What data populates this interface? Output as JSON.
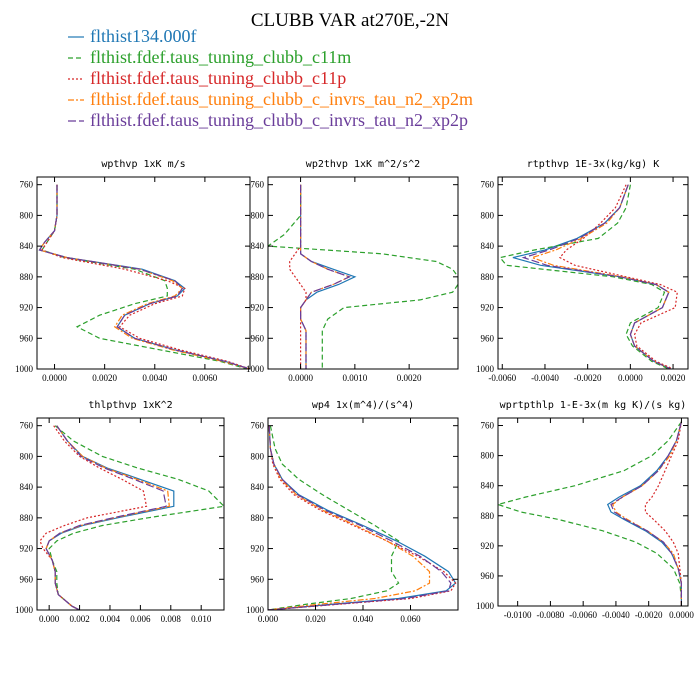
{
  "title": "CLUBB VAR at270E,-2N",
  "legend": [
    {
      "label": "flthist134.000f",
      "color": "#1f77b4",
      "dash": "solid"
    },
    {
      "label": "flthist.fdef.taus_tuning_clubb_c11m",
      "color": "#2ca02c",
      "dash": "dashed"
    },
    {
      "label": "flthist.fdef.taus_tuning_clubb_c11p",
      "color": "#d62728",
      "dash": "dotted"
    },
    {
      "label": "flthist.fdef.taus_tuning_clubb_c_invrs_tau_n2_xp2m",
      "color": "#ff7f0e",
      "dash": "dashdot"
    },
    {
      "label": "flthist.fdef.taus_tuning_clubb_c_invrs_tau_n2_xp2p",
      "color": "#6a3d9a",
      "dash": "longdash"
    }
  ],
  "chart_data": [
    {
      "type": "line",
      "title": "wpthvp  1xK m/s",
      "xlim": [
        -0.0007,
        0.0078
      ],
      "ylim": [
        750,
        1000
      ],
      "xticks": [
        0.0,
        0.002,
        0.004,
        0.006
      ],
      "xtick_labels": [
        "0.0000",
        "0.0020",
        "0.0040",
        "0.0060"
      ],
      "yticks": [
        760,
        800,
        840,
        880,
        920,
        960,
        1000
      ],
      "y": [
        760,
        780,
        800,
        820,
        835,
        845,
        855,
        870,
        885,
        895,
        905,
        915,
        930,
        945,
        960,
        975,
        990,
        1000
      ],
      "series": [
        {
          "values": [
            0.0001,
            0.0001,
            0.0001,
            0.0,
            -0.0004,
            -0.0006,
            0.0005,
            0.0035,
            0.0048,
            0.0052,
            0.0049,
            0.0038,
            0.0028,
            0.0025,
            0.0032,
            0.0048,
            0.0068,
            0.0078
          ]
        },
        {
          "values": [
            0.0001,
            0.0001,
            0.0001,
            0.0,
            -0.0003,
            -0.0005,
            0.0004,
            0.0032,
            0.0044,
            0.0045,
            0.0045,
            0.0032,
            0.0018,
            0.0009,
            0.0018,
            0.0042,
            0.0066,
            0.0077
          ]
        },
        {
          "values": [
            0.0001,
            0.0001,
            0.0001,
            0.0,
            -0.0003,
            -0.0005,
            0.0003,
            0.0028,
            0.0045,
            0.0052,
            0.0051,
            0.004,
            0.003,
            0.0026,
            0.0034,
            0.005,
            0.0069,
            0.0078
          ]
        },
        {
          "values": [
            0.0001,
            0.0001,
            0.0001,
            0.0,
            -0.0004,
            -0.0006,
            0.0005,
            0.0034,
            0.0047,
            0.0051,
            0.0048,
            0.0037,
            0.0027,
            0.0024,
            0.0031,
            0.0047,
            0.0067,
            0.0078
          ]
        },
        {
          "values": [
            0.0001,
            0.0001,
            0.0001,
            0.0,
            -0.0004,
            -0.0006,
            0.0005,
            0.0034,
            0.0048,
            0.0051,
            0.0049,
            0.0038,
            0.0028,
            0.0025,
            0.0032,
            0.0048,
            0.0068,
            0.0078
          ]
        }
      ]
    },
    {
      "type": "line",
      "title": "wp2thvp  1xK m^2/s^2",
      "xlim": [
        -0.0006,
        0.0029
      ],
      "ylim": [
        750,
        1000
      ],
      "xticks": [
        0.0,
        0.001,
        0.002
      ],
      "xtick_labels": [
        "0.0000",
        "0.0010",
        "0.0020"
      ],
      "yticks": [
        760,
        800,
        840,
        880,
        920,
        960,
        1000
      ],
      "y": [
        760,
        800,
        825,
        840,
        850,
        860,
        870,
        880,
        890,
        900,
        910,
        920,
        935,
        950,
        970,
        1000
      ],
      "series": [
        {
          "values": [
            0.0,
            0.0,
            0.0,
            0.0,
            0.0,
            0.0002,
            0.0006,
            0.001,
            0.0007,
            0.0003,
            0.0001,
            0.0,
            0.0,
            0.0001,
            0.0001,
            0.0001
          ]
        },
        {
          "values": [
            0.0,
            0.0,
            -0.0003,
            -0.0006,
            0.0015,
            0.0025,
            0.0028,
            0.0029,
            0.0029,
            0.0028,
            0.0022,
            0.0008,
            0.0005,
            0.0004,
            0.0004,
            0.0004
          ]
        },
        {
          "values": [
            0.0,
            0.0,
            0.0,
            0.0,
            -0.0001,
            -0.0002,
            -0.0002,
            -0.0001,
            0.0,
            0.0001,
            0.0001,
            0.0,
            0.0,
            0.0,
            0.0,
            0.0
          ]
        },
        {
          "values": [
            0.0,
            0.0,
            0.0,
            0.0,
            0.0,
            0.0002,
            0.0005,
            0.0009,
            0.0006,
            0.0002,
            0.0001,
            0.0,
            0.0,
            0.0001,
            0.0001,
            0.0001
          ]
        },
        {
          "values": [
            0.0,
            0.0,
            0.0,
            0.0,
            0.0,
            0.0002,
            0.0005,
            0.0009,
            0.0006,
            0.0002,
            0.0001,
            0.0,
            0.0,
            0.0001,
            0.0001,
            0.0001
          ]
        }
      ]
    },
    {
      "type": "line",
      "title": "rtpthvp  1E-3x(kg/kg) K",
      "xlim": [
        -0.0062,
        0.0027
      ],
      "ylim": [
        750,
        1000
      ],
      "xticks": [
        -0.006,
        -0.004,
        -0.002,
        0.0,
        0.002
      ],
      "xtick_labels": [
        "-0.0060",
        "-0.0040",
        "-0.0020",
        "0.0000",
        "0.0020"
      ],
      "yticks": [
        760,
        800,
        840,
        880,
        920,
        960,
        1000
      ],
      "y": [
        760,
        790,
        810,
        830,
        845,
        855,
        865,
        880,
        890,
        900,
        920,
        940,
        955,
        970,
        990,
        1000
      ],
      "series": [
        {
          "values": [
            -0.0001,
            -0.0005,
            -0.0012,
            -0.0025,
            -0.004,
            -0.0055,
            -0.0042,
            -0.0005,
            0.0012,
            0.0018,
            0.0015,
            0.0002,
            0.0,
            0.0002,
            0.0011,
            0.0019
          ]
        },
        {
          "values": [
            0.0,
            -0.0002,
            -0.0006,
            -0.0015,
            -0.0045,
            -0.0061,
            -0.0058,
            -0.0008,
            0.001,
            0.0016,
            0.0013,
            0.0,
            -0.0002,
            0.0001,
            0.001,
            0.0018
          ]
        },
        {
          "values": [
            -0.0002,
            -0.0007,
            -0.0014,
            -0.0022,
            -0.003,
            -0.0033,
            -0.0026,
            -0.0002,
            0.0014,
            0.0022,
            0.0021,
            0.0005,
            0.0002,
            0.0003,
            0.0012,
            0.002
          ]
        },
        {
          "values": [
            -0.0001,
            -0.0005,
            -0.0011,
            -0.0023,
            -0.0035,
            -0.0046,
            -0.0036,
            -0.0004,
            0.0012,
            0.0018,
            0.0015,
            0.0002,
            0.0,
            0.0002,
            0.0011,
            0.0019
          ]
        },
        {
          "values": [
            -0.0001,
            -0.0005,
            -0.0012,
            -0.0024,
            -0.0038,
            -0.005,
            -0.0039,
            -0.0005,
            0.0012,
            0.0018,
            0.0015,
            0.0002,
            0.0,
            0.0002,
            0.0011,
            0.0019
          ]
        }
      ]
    },
    {
      "type": "line",
      "title": "thlpthvp  1xK^2",
      "xlim": [
        -0.0008,
        0.0115
      ],
      "ylim": [
        750,
        1000
      ],
      "xticks": [
        0.0,
        0.002,
        0.004,
        0.006,
        0.008,
        0.01
      ],
      "xtick_labels": [
        "0.000",
        "0.002",
        "0.004",
        "0.006",
        "0.008",
        "0.010"
      ],
      "yticks": [
        760,
        800,
        840,
        880,
        920,
        960,
        1000
      ],
      "y": [
        760,
        780,
        800,
        815,
        830,
        845,
        865,
        880,
        890,
        900,
        910,
        920,
        935,
        950,
        965,
        980,
        995,
        1000
      ],
      "series": [
        {
          "values": [
            0.0005,
            0.0012,
            0.0022,
            0.0038,
            0.006,
            0.0082,
            0.0082,
            0.0045,
            0.0022,
            0.0008,
            0.0,
            -0.0002,
            0.0002,
            0.0004,
            0.0004,
            0.0006,
            0.0015,
            0.002
          ]
        },
        {
          "values": [
            0.0004,
            0.0016,
            0.0035,
            0.0058,
            0.0085,
            0.0105,
            0.0115,
            0.0065,
            0.0035,
            0.0016,
            0.0005,
            0.0,
            0.0002,
            0.0005,
            0.0005,
            0.0006,
            0.0015,
            0.002
          ]
        },
        {
          "values": [
            0.0003,
            0.001,
            0.002,
            0.0033,
            0.0048,
            0.0062,
            0.0064,
            0.0025,
            0.001,
            -0.0002,
            -0.0006,
            -0.0004,
            0.0002,
            0.0004,
            0.0004,
            0.0006,
            0.0015,
            0.002
          ]
        },
        {
          "values": [
            0.0005,
            0.0012,
            0.0022,
            0.0037,
            0.0058,
            0.0078,
            0.0079,
            0.0043,
            0.0021,
            0.0007,
            0.0,
            -0.0002,
            0.0002,
            0.0004,
            0.0004,
            0.0006,
            0.0015,
            0.002
          ]
        },
        {
          "values": [
            0.0005,
            0.0012,
            0.0021,
            0.0036,
            0.0056,
            0.0075,
            0.0077,
            0.0042,
            0.002,
            0.0007,
            0.0,
            -0.0002,
            0.0002,
            0.0004,
            0.0004,
            0.0006,
            0.0015,
            0.002
          ]
        }
      ]
    },
    {
      "type": "line",
      "title": "wp4  1x(m^4)/(s^4)",
      "xlim": [
        0.0,
        0.08
      ],
      "ylim": [
        750,
        1000
      ],
      "xticks": [
        0.0,
        0.02,
        0.04,
        0.06
      ],
      "xtick_labels": [
        "0.000",
        "0.020",
        "0.040",
        "0.060"
      ],
      "yticks": [
        760,
        800,
        840,
        880,
        920,
        960,
        1000
      ],
      "y": [
        760,
        790,
        810,
        830,
        850,
        870,
        890,
        910,
        930,
        950,
        965,
        975,
        985,
        993,
        1000
      ],
      "series": [
        {
          "values": [
            0.0005,
            0.001,
            0.0025,
            0.006,
            0.013,
            0.025,
            0.04,
            0.054,
            0.066,
            0.076,
            0.079,
            0.075,
            0.055,
            0.025,
            0.0
          ]
        },
        {
          "values": [
            0.001,
            0.003,
            0.006,
            0.013,
            0.023,
            0.034,
            0.045,
            0.055,
            0.052,
            0.052,
            0.055,
            0.05,
            0.035,
            0.015,
            0.0
          ]
        },
        {
          "values": [
            0.0005,
            0.001,
            0.002,
            0.005,
            0.011,
            0.022,
            0.036,
            0.05,
            0.063,
            0.074,
            0.079,
            0.077,
            0.06,
            0.028,
            0.0
          ]
        },
        {
          "values": [
            0.0005,
            0.001,
            0.0025,
            0.0055,
            0.012,
            0.023,
            0.037,
            0.05,
            0.061,
            0.068,
            0.068,
            0.062,
            0.045,
            0.02,
            0.0
          ]
        },
        {
          "values": [
            0.0005,
            0.001,
            0.0025,
            0.006,
            0.0125,
            0.024,
            0.039,
            0.052,
            0.064,
            0.073,
            0.077,
            0.076,
            0.058,
            0.027,
            0.0
          ]
        }
      ]
    },
    {
      "type": "line",
      "title": "wprtpthlp  1-E-3x(m kg K)/(s kg)",
      "xlim": [
        -0.0112,
        0.0004
      ],
      "ylim": [
        750,
        1000
      ],
      "xticks": [
        -0.01,
        -0.008,
        -0.006,
        -0.004,
        -0.002,
        0.0
      ],
      "xtick_labels": [
        "-0.0100",
        "-0.0080",
        "-0.0060",
        "-0.0040",
        "-0.0020",
        "0.0000"
      ],
      "yticks": [
        760,
        800,
        840,
        880,
        920,
        960,
        1000
      ],
      "y": [
        755,
        780,
        800,
        820,
        840,
        855,
        865,
        875,
        885,
        900,
        915,
        930,
        950,
        970,
        990,
        1000
      ],
      "series": [
        {
          "values": [
            0.0,
            -0.0003,
            -0.0008,
            -0.0015,
            -0.0025,
            -0.0038,
            -0.0045,
            -0.0043,
            -0.0035,
            -0.0022,
            -0.0012,
            -0.0006,
            -0.0002,
            0.0,
            0.0,
            0.0
          ]
        },
        {
          "values": [
            0.0,
            -0.0008,
            -0.0018,
            -0.0035,
            -0.0065,
            -0.0095,
            -0.0112,
            -0.0098,
            -0.0075,
            -0.0048,
            -0.0028,
            -0.0015,
            -0.0005,
            -0.0001,
            0.0,
            0.0
          ]
        },
        {
          "values": [
            0.0,
            -0.0002,
            -0.0006,
            -0.001,
            -0.0014,
            -0.0018,
            -0.0022,
            -0.0022,
            -0.0017,
            -0.001,
            -0.0005,
            -0.0002,
            -0.0001,
            0.0,
            0.0,
            0.0
          ]
        },
        {
          "values": [
            0.0,
            -0.0003,
            -0.0007,
            -0.0014,
            -0.0024,
            -0.0036,
            -0.0042,
            -0.004,
            -0.0033,
            -0.0021,
            -0.0011,
            -0.0005,
            -0.0002,
            0.0,
            0.0,
            0.0
          ]
        },
        {
          "values": [
            0.0,
            -0.0003,
            -0.0008,
            -0.0014,
            -0.0024,
            -0.0036,
            -0.0043,
            -0.0041,
            -0.0034,
            -0.0021,
            -0.0011,
            -0.0006,
            -0.0002,
            0.0,
            0.0,
            0.0
          ]
        }
      ]
    }
  ]
}
